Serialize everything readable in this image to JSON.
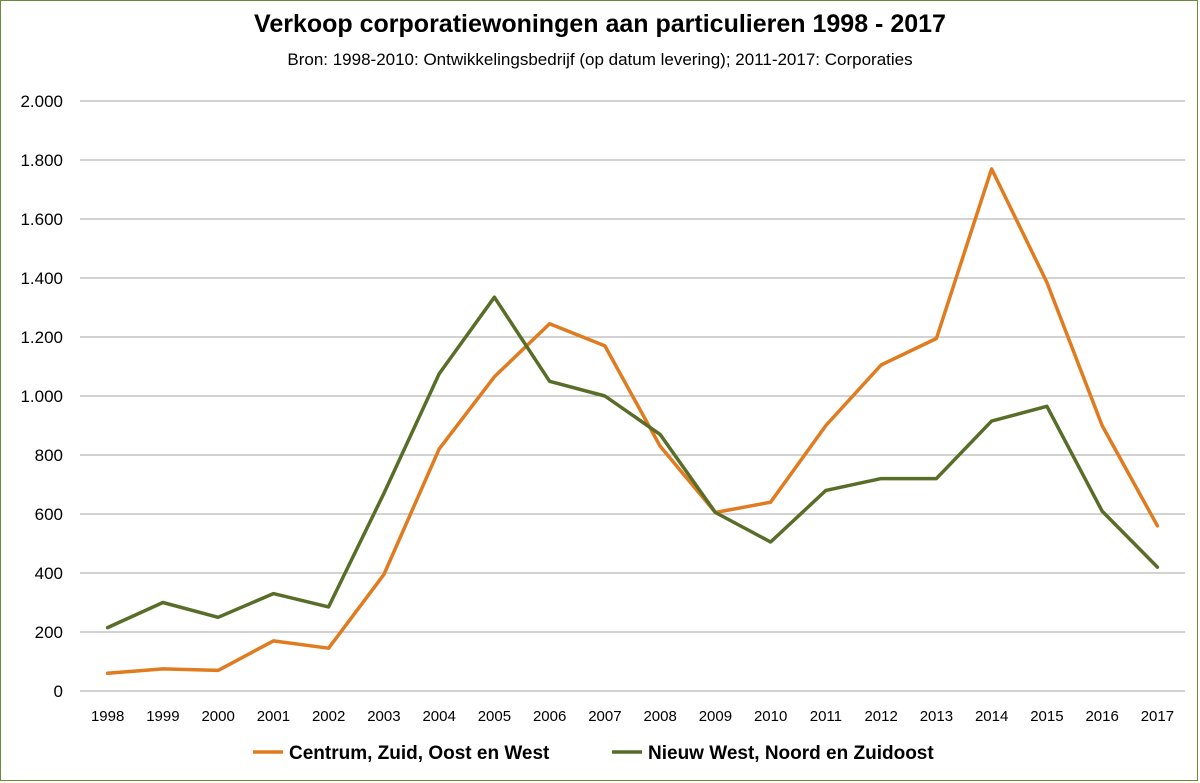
{
  "chart_data": {
    "type": "line",
    "title": "Verkoop corporatiewoningen aan particulieren 1998 - 2017",
    "subtitle": "Bron: 1998-2010: Ontwikkelingsbedrijf (op datum levering); 2011-2017: Corporaties",
    "xlabel": "",
    "ylabel": "",
    "x": [
      "1998",
      "1999",
      "2000",
      "2001",
      "2002",
      "2003",
      "2004",
      "2005",
      "2006",
      "2007",
      "2008",
      "2009",
      "2010",
      "2011",
      "2012",
      "2013",
      "2014",
      "2015",
      "2016",
      "2017"
    ],
    "ylim": [
      0,
      2000
    ],
    "yticks": [
      0,
      200,
      400,
      600,
      800,
      1000,
      1200,
      1400,
      1600,
      1800,
      2000
    ],
    "ytick_labels": [
      "0",
      "200",
      "400",
      "600",
      "800",
      "1.000",
      "1.200",
      "1.400",
      "1.600",
      "1.800",
      "2.000"
    ],
    "grid": true,
    "legend_position": "bottom",
    "series": [
      {
        "name": "Centrum, Zuid, Oost en West",
        "color": "#e07b1f",
        "values": [
          60,
          75,
          70,
          170,
          145,
          395,
          820,
          1065,
          1245,
          1170,
          830,
          605,
          640,
          900,
          1105,
          1195,
          1770,
          1385,
          900,
          560
        ]
      },
      {
        "name": "Nieuw West, Noord en Zuidoost",
        "color": "#586e28",
        "values": [
          215,
          300,
          250,
          330,
          285,
          670,
          1075,
          1335,
          1050,
          1000,
          870,
          605,
          505,
          680,
          720,
          720,
          915,
          965,
          610,
          420
        ]
      }
    ]
  }
}
